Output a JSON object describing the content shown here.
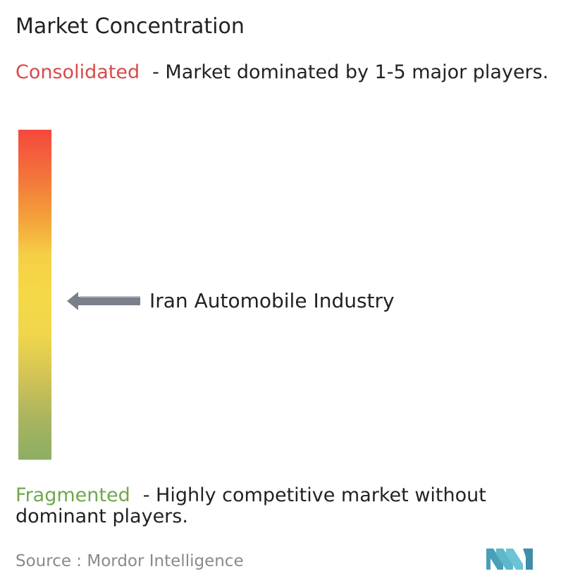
{
  "title": "Market Concentration",
  "consolidated": {
    "keyword": "Consolidated",
    "description": "- Market dominated by 1-5 major players."
  },
  "fragmented": {
    "keyword": "Fragmented",
    "description": "- Highly competitive market without dominant players."
  },
  "marker": {
    "label": "Iran Automobile Industry",
    "level": 0.46
  },
  "source": "Source :  Mordor Intelligence",
  "colors": {
    "consolidated": "#d94a4a",
    "fragmented": "#6fa84a",
    "scale_top": "#f5473d",
    "scale_middle": "#f5d948",
    "scale_bottom": "#8cae64",
    "arrow": "#7a808a",
    "logo": "#5fb8c9"
  },
  "icons": {
    "arrow": "arrow-left-icon",
    "logo": "mordor-intelligence-logo"
  }
}
